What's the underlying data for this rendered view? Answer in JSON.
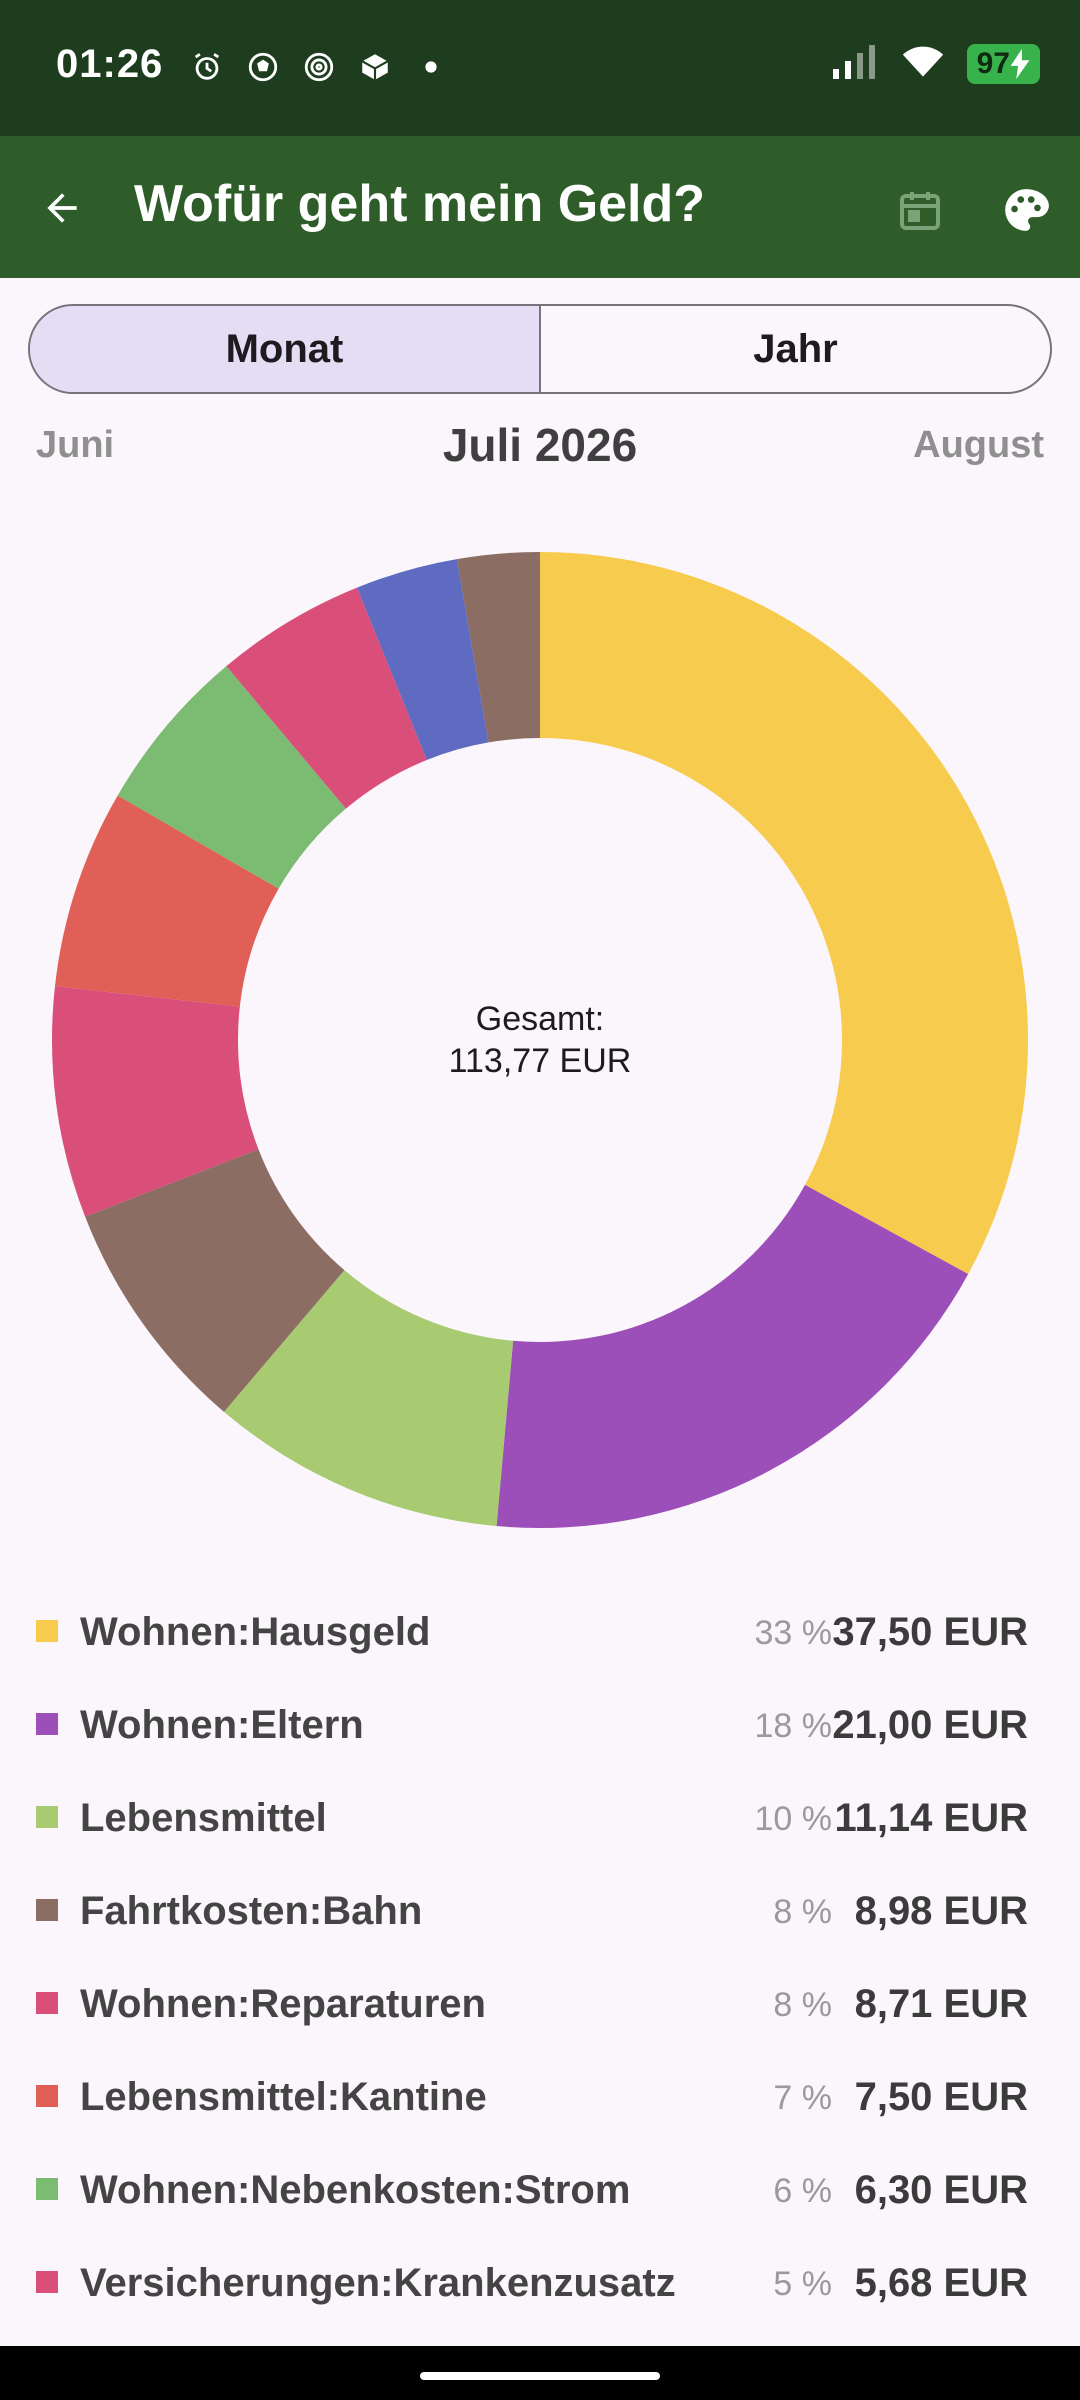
{
  "status_bar": {
    "time": "01:26",
    "battery": "97",
    "icons_left": [
      "alarm-icon",
      "soccer-ball-icon",
      "spiral-icon",
      "package-icon",
      "dot-icon"
    ],
    "icons_right": [
      "signal-icon",
      "wifi-icon",
      "battery-icon",
      "charging-icon"
    ]
  },
  "app_bar": {
    "title": "Wofür geht mein Geld?",
    "back_icon": "arrow-left-icon",
    "calendar_icon": "calendar-icon",
    "palette_icon": "palette-icon"
  },
  "segmented": {
    "month_label": "Monat",
    "year_label": "Jahr",
    "selected": "Monat"
  },
  "month_nav": {
    "prev": "Juni",
    "current": "Juli 2026",
    "next": "August"
  },
  "chart_data": {
    "type": "pie",
    "center_label_line1": "Gesamt:",
    "center_label_line2": "113,77 EUR",
    "slices": [
      {
        "label": "Wohnen:Hausgeld",
        "value": 37.5,
        "color": "#f7cb4d"
      },
      {
        "label": "Wohnen:Eltern",
        "value": 21.0,
        "color": "#9c4fb8"
      },
      {
        "label": "Lebensmittel",
        "value": 11.14,
        "color": "#a8cb72"
      },
      {
        "label": "Fahrtkosten:Bahn",
        "value": 8.98,
        "color": "#8b6d63"
      },
      {
        "label": "Wohnen:Reparaturen",
        "value": 8.71,
        "color": "#d94f79"
      },
      {
        "label": "Lebensmittel:Kantine",
        "value": 7.5,
        "color": "#e05f57"
      },
      {
        "label": "Wohnen:Nebenkosten:Strom",
        "value": 6.3,
        "color": "#7cbb72"
      },
      {
        "label": "Versicherungen:Krankenzusatz",
        "value": 5.68,
        "color": "#d94f79"
      },
      {
        "label": "",
        "value": 3.86,
        "color": "#5f6bc0"
      },
      {
        "label": "",
        "value": 3.1,
        "color": "#8b6d63"
      }
    ]
  },
  "legend": [
    {
      "name": "Wohnen:Hausgeld",
      "pct": "33 %",
      "amount": "37,50 EUR",
      "color": "#f7cb4d"
    },
    {
      "name": "Wohnen:Eltern",
      "pct": "18 %",
      "amount": "21,00 EUR",
      "color": "#9c4fb8"
    },
    {
      "name": "Lebensmittel",
      "pct": "10 %",
      "amount": "11,14 EUR",
      "color": "#a8cb72"
    },
    {
      "name": "Fahrtkosten:Bahn",
      "pct": "8 %",
      "amount": "8,98 EUR",
      "color": "#8b6d63"
    },
    {
      "name": "Wohnen:Reparaturen",
      "pct": "8 %",
      "amount": "8,71 EUR",
      "color": "#d94f79"
    },
    {
      "name": "Lebensmittel:Kantine",
      "pct": "7 %",
      "amount": "7,50 EUR",
      "color": "#e05f57"
    },
    {
      "name": "Wohnen:Nebenkosten:Strom",
      "pct": "6 %",
      "amount": "6,30 EUR",
      "color": "#7cbb72"
    },
    {
      "name": "Versicherungen:Krankenzusatz",
      "pct": "5 %",
      "amount": "5,68 EUR",
      "color": "#d94f79"
    }
  ]
}
